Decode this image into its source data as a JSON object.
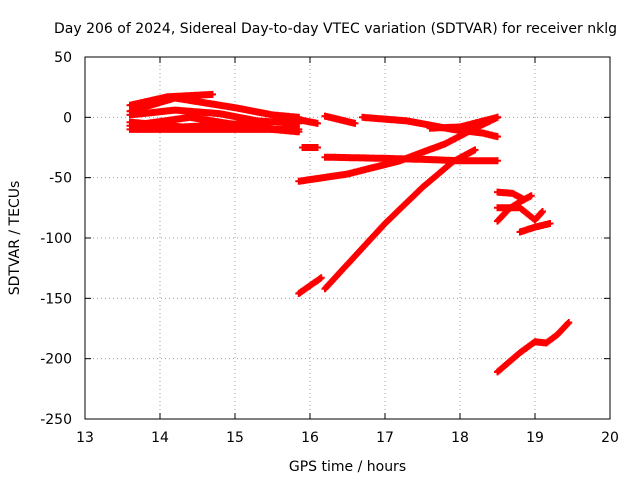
{
  "chart_data": {
    "type": "scatter",
    "title": "Day 206 of 2024, Sidereal Day-to-day VTEC variation (SDTVAR) for receiver nklg",
    "xlabel": "GPS time / hours",
    "ylabel": "SDTVAR / TECUs",
    "xlim": [
      13,
      20
    ],
    "ylim": [
      -250,
      50
    ],
    "xticks": [
      13,
      14,
      15,
      16,
      17,
      18,
      19,
      20
    ],
    "yticks": [
      -250,
      -200,
      -150,
      -100,
      -50,
      0,
      50
    ],
    "grid": true,
    "marker": "plus",
    "color": "#ff0000",
    "segments": [
      [
        [
          13.6,
          10
        ],
        [
          14.1,
          17
        ],
        [
          14.7,
          19
        ]
      ],
      [
        [
          13.6,
          5
        ],
        [
          14.2,
          16
        ],
        [
          15.0,
          8
        ],
        [
          15.5,
          2
        ],
        [
          15.85,
          0
        ]
      ],
      [
        [
          13.6,
          2
        ],
        [
          14.2,
          6
        ],
        [
          14.8,
          3
        ],
        [
          15.3,
          -3
        ],
        [
          15.85,
          -5
        ]
      ],
      [
        [
          13.6,
          -4
        ],
        [
          14.3,
          -8
        ],
        [
          14.9,
          -6
        ],
        [
          15.5,
          -4
        ],
        [
          15.85,
          -2
        ]
      ],
      [
        [
          13.6,
          -10
        ],
        [
          14.5,
          -10
        ],
        [
          15.2,
          -10
        ],
        [
          15.85,
          -10
        ]
      ],
      [
        [
          13.6,
          -7
        ],
        [
          14.4,
          0
        ],
        [
          14.9,
          -5
        ],
        [
          15.5,
          -10
        ],
        [
          15.85,
          -12
        ]
      ],
      [
        [
          15.85,
          -2
        ],
        [
          16.1,
          -5
        ]
      ],
      [
        [
          15.9,
          -25
        ],
        [
          16.1,
          -25
        ]
      ],
      [
        [
          16.2,
          1
        ],
        [
          16.6,
          -5
        ]
      ],
      [
        [
          16.7,
          0
        ],
        [
          17.3,
          -3
        ],
        [
          17.9,
          -10
        ],
        [
          18.3,
          -13
        ],
        [
          18.5,
          -16
        ]
      ],
      [
        [
          17.6,
          -9
        ],
        [
          18.0,
          -8
        ],
        [
          18.5,
          0
        ]
      ],
      [
        [
          16.2,
          -33
        ],
        [
          17.0,
          -34
        ],
        [
          17.6,
          -35
        ],
        [
          18.0,
          -36
        ],
        [
          18.5,
          -36
        ]
      ],
      [
        [
          15.85,
          -53
        ],
        [
          16.5,
          -47
        ],
        [
          17.2,
          -36
        ],
        [
          17.8,
          -22
        ],
        [
          18.2,
          -9
        ],
        [
          18.5,
          0
        ]
      ],
      [
        [
          15.85,
          -146
        ],
        [
          16.15,
          -133
        ]
      ],
      [
        [
          16.2,
          -142
        ],
        [
          16.6,
          -115
        ],
        [
          17.0,
          -88
        ],
        [
          17.5,
          -58
        ],
        [
          17.9,
          -37
        ],
        [
          18.2,
          -27
        ]
      ],
      [
        [
          18.5,
          -62
        ],
        [
          18.7,
          -63
        ],
        [
          18.85,
          -68
        ]
      ],
      [
        [
          18.5,
          -75
        ],
        [
          18.65,
          -75
        ],
        [
          18.8,
          -75
        ],
        [
          19.0,
          -85
        ],
        [
          19.1,
          -78
        ]
      ],
      [
        [
          18.5,
          -86
        ],
        [
          18.65,
          -76
        ],
        [
          18.8,
          -70
        ],
        [
          18.95,
          -65
        ]
      ],
      [
        [
          18.8,
          -95
        ],
        [
          19.0,
          -91
        ],
        [
          19.2,
          -88
        ]
      ],
      [
        [
          18.5,
          -211
        ],
        [
          18.8,
          -195
        ],
        [
          19.0,
          -186
        ],
        [
          19.15,
          -187
        ],
        [
          19.3,
          -180
        ],
        [
          19.45,
          -170
        ]
      ]
    ]
  }
}
